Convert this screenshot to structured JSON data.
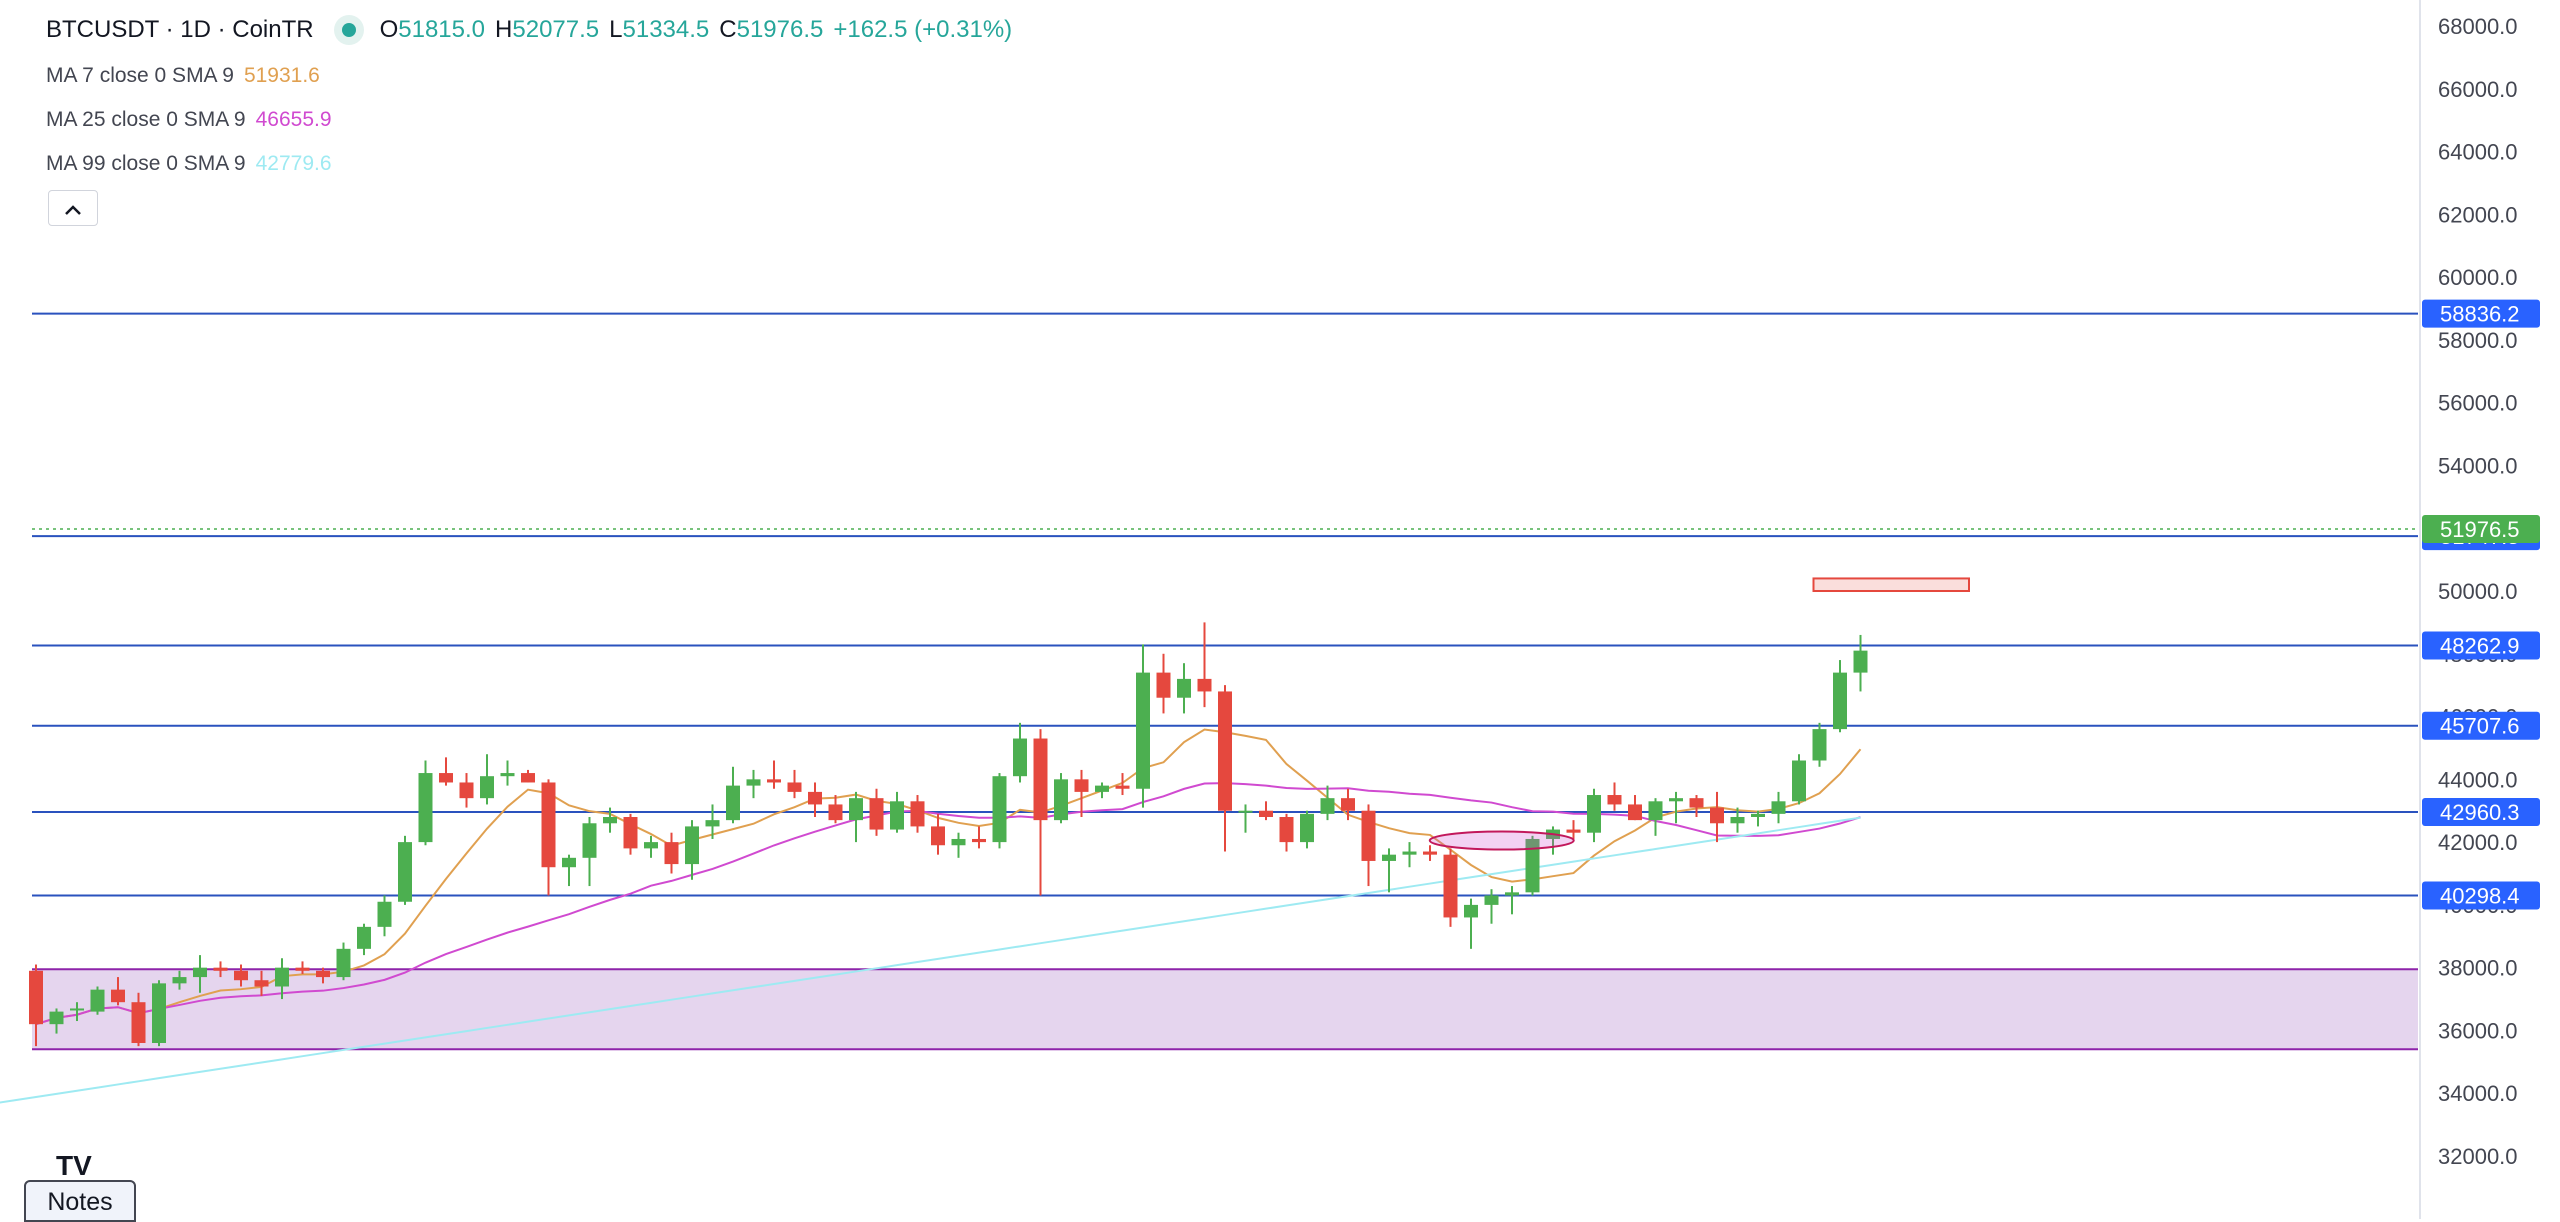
{
  "header": {
    "symbol_line": "BTCUSDT · 1D · CoinTR",
    "ohlc": [
      {
        "label": "O",
        "value": "51815.0"
      },
      {
        "label": "H",
        "value": "52077.5"
      },
      {
        "label": "L",
        "value": "51334.5"
      },
      {
        "label": "C",
        "value": "51976.5"
      }
    ],
    "change": "+162.5 (+0.31%)"
  },
  "indicators": [
    {
      "label": "MA 7 close 0 SMA 9",
      "value": "51931.6",
      "color": "#e0a050"
    },
    {
      "label": "MA 25 close 0 SMA 9",
      "value": "46655.9",
      "color": "#d04ad0"
    },
    {
      "label": "MA 99 close 0 SMA 9",
      "value": "42779.6",
      "color": "#9eeaf2"
    }
  ],
  "collapse_icon": "chevron-up-icon",
  "notes_label": "Notes",
  "logo_text": "TV",
  "colors": {
    "up": "#4caf50",
    "down": "#e5483e",
    "hline": "#2a52be",
    "tag": "#2962ff",
    "last_price": "#4caf50",
    "zone_fill": "#e5d5ee",
    "zone_border": "#8e24aa"
  },
  "chart_data": {
    "type": "candlestick",
    "symbol": "BTCUSDT",
    "interval": "1D",
    "ylim": [
      31000,
      68500
    ],
    "y_ticks": [
      32000,
      34000,
      36000,
      38000,
      40000,
      42000,
      44000,
      46000,
      48000,
      50000,
      52000,
      54000,
      56000,
      58000,
      60000,
      62000,
      64000,
      66000,
      68000
    ],
    "y_tick_labels": [
      "32000.0",
      "34000.0",
      "36000.0",
      "38000.0",
      "40000.0",
      "42000.0",
      "44000.0",
      "46000.0",
      "48000.0",
      "50000.0",
      "52000.0",
      "54000.0",
      "56000.0",
      "58000.0",
      "60000.0",
      "62000.0",
      "64000.0",
      "66000.0",
      "68000.0"
    ],
    "last_price": 51976.5,
    "last_price_label": "51976.5",
    "horizontal_levels": [
      {
        "value": 58836.2,
        "label": "58836.2"
      },
      {
        "value": 51747.5,
        "label": "51747.5"
      },
      {
        "value": 48262.9,
        "label": "48262.9"
      },
      {
        "value": 45707.6,
        "label": "45707.6"
      },
      {
        "value": 42960.3,
        "label": "42960.3"
      },
      {
        "value": 40298.4,
        "label": "40298.4"
      }
    ],
    "zones": [
      {
        "from": 35400,
        "to": 37950,
        "start_index": 0,
        "end_index": 200
      }
    ],
    "marked_box": {
      "low": 50000,
      "high": 50400,
      "start_index": 87,
      "end_index": 94
    },
    "marked_ellipse": {
      "center_index": 71.5,
      "value": 42050
    },
    "candles": [
      [
        37900,
        38100,
        35500,
        36200
      ],
      [
        36200,
        36700,
        35900,
        36600
      ],
      [
        36700,
        36900,
        36300,
        36700
      ],
      [
        36600,
        37400,
        36500,
        37300
      ],
      [
        37300,
        37700,
        36800,
        36900
      ],
      [
        36900,
        37200,
        35500,
        35600
      ],
      [
        35600,
        37600,
        35500,
        37500
      ],
      [
        37500,
        37900,
        37300,
        37700
      ],
      [
        37700,
        38400,
        37200,
        38000
      ],
      [
        38000,
        38200,
        37700,
        37900
      ],
      [
        37900,
        38100,
        37400,
        37600
      ],
      [
        37600,
        37900,
        37100,
        37400
      ],
      [
        37400,
        38300,
        37000,
        38000
      ],
      [
        38000,
        38200,
        37800,
        37900
      ],
      [
        37900,
        38000,
        37500,
        37700
      ],
      [
        37700,
        38800,
        37600,
        38600
      ],
      [
        38600,
        39400,
        38400,
        39300
      ],
      [
        39300,
        40300,
        39000,
        40100
      ],
      [
        40100,
        42200,
        40000,
        42000
      ],
      [
        42000,
        44600,
        41900,
        44200
      ],
      [
        44200,
        44700,
        43800,
        43900
      ],
      [
        43900,
        44200,
        43100,
        43400
      ],
      [
        43400,
        44800,
        43200,
        44100
      ],
      [
        44100,
        44600,
        43800,
        44200
      ],
      [
        44200,
        44300,
        43900,
        43900
      ],
      [
        43900,
        44000,
        40300,
        41200
      ],
      [
        41200,
        41600,
        40600,
        41500
      ],
      [
        41500,
        42800,
        40600,
        42600
      ],
      [
        42600,
        43100,
        42300,
        42800
      ],
      [
        42800,
        42900,
        41600,
        41800
      ],
      [
        41800,
        42200,
        41500,
        42000
      ],
      [
        42000,
        42300,
        41000,
        41300
      ],
      [
        41300,
        42700,
        40800,
        42500
      ],
      [
        42500,
        43200,
        42100,
        42700
      ],
      [
        42700,
        44400,
        42600,
        43800
      ],
      [
        43800,
        44300,
        43400,
        44000
      ],
      [
        44000,
        44600,
        43700,
        43900
      ],
      [
        43900,
        44300,
        43400,
        43600
      ],
      [
        43600,
        43900,
        42800,
        43200
      ],
      [
        43200,
        43500,
        42600,
        42700
      ],
      [
        42700,
        43600,
        42000,
        43400
      ],
      [
        43400,
        43700,
        42200,
        42400
      ],
      [
        42400,
        43600,
        42300,
        43300
      ],
      [
        43300,
        43500,
        42300,
        42500
      ],
      [
        42500,
        42900,
        41600,
        41900
      ],
      [
        41900,
        42300,
        41500,
        42100
      ],
      [
        42100,
        42500,
        41800,
        42000
      ],
      [
        42000,
        44200,
        41800,
        44100
      ],
      [
        44100,
        45800,
        43900,
        45300
      ],
      [
        45300,
        45600,
        40300,
        42700
      ],
      [
        42700,
        44200,
        42600,
        44000
      ],
      [
        44000,
        44300,
        42800,
        43600
      ],
      [
        43600,
        43900,
        43400,
        43800
      ],
      [
        43800,
        44200,
        43500,
        43700
      ],
      [
        43700,
        48300,
        43100,
        47400
      ],
      [
        47400,
        48000,
        46100,
        46600
      ],
      [
        46600,
        47700,
        46100,
        47200
      ],
      [
        47200,
        49000,
        46300,
        46800
      ],
      [
        46800,
        47000,
        41700,
        43000
      ],
      [
        43000,
        43200,
        42300,
        43000
      ],
      [
        43000,
        43300,
        42700,
        42800
      ],
      [
        42800,
        42900,
        41700,
        42000
      ],
      [
        42000,
        43000,
        41800,
        42900
      ],
      [
        42900,
        43800,
        42700,
        43400
      ],
      [
        43400,
        43700,
        42700,
        43000
      ],
      [
        43000,
        43200,
        40600,
        41400
      ],
      [
        41400,
        41800,
        40400,
        41600
      ],
      [
        41600,
        42000,
        41200,
        41700
      ],
      [
        41700,
        41900,
        41400,
        41600
      ],
      [
        41600,
        41800,
        39300,
        39600
      ],
      [
        39600,
        40200,
        38600,
        40000
      ],
      [
        40000,
        40500,
        39400,
        40300
      ],
      [
        40300,
        40600,
        39700,
        40400
      ],
      [
        40400,
        42200,
        40300,
        42100
      ],
      [
        42100,
        42500,
        41600,
        42400
      ],
      [
        42400,
        42700,
        42100,
        42300
      ],
      [
        42300,
        43700,
        42000,
        43500
      ],
      [
        43500,
        43900,
        43000,
        43200
      ],
      [
        43200,
        43500,
        42700,
        42700
      ],
      [
        42700,
        43400,
        42200,
        43300
      ],
      [
        43300,
        43600,
        42600,
        43400
      ],
      [
        43400,
        43500,
        42800,
        43100
      ],
      [
        43100,
        43600,
        42000,
        42600
      ],
      [
        42600,
        43100,
        42300,
        42800
      ],
      [
        42800,
        43000,
        42500,
        42900
      ],
      [
        42900,
        43600,
        42600,
        43300
      ],
      [
        43300,
        44800,
        43200,
        44600
      ],
      [
        44600,
        45800,
        44400,
        45600
      ],
      [
        45600,
        47800,
        45500,
        47400
      ],
      [
        47400,
        48600,
        46800,
        48100
      ]
    ]
  }
}
